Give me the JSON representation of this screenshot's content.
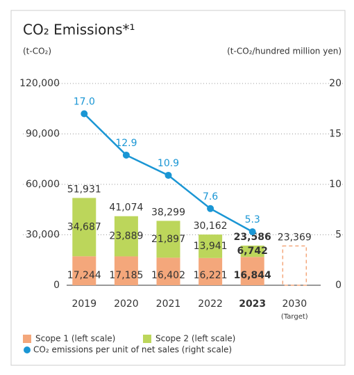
{
  "chart_data": {
    "type": "bar",
    "title": "CO₂ Emissions*¹",
    "y_label": "(t-CO₂)",
    "y2_label": "(t-CO₂/hundred million yen)",
    "categories": [
      "2019",
      "2020",
      "2021",
      "2022",
      "2023",
      "2030"
    ],
    "category_note": "(Target)",
    "highlight_category": "2023",
    "stacked": true,
    "series": [
      {
        "name": "Scope 1 (left scale)",
        "color": "#f4a77b",
        "values": [
          17244,
          17185,
          16402,
          16221,
          16844,
          null
        ],
        "value_labels": [
          "17,244",
          "17,185",
          "16,402",
          "16,221",
          "16,844",
          null
        ]
      },
      {
        "name": "Scope 2 (left scale)",
        "color": "#bcd65b",
        "values": [
          34687,
          23889,
          21897,
          13941,
          6742,
          null
        ],
        "value_labels": [
          "34,687",
          "23,889",
          "21,897",
          "13,941",
          "6,742",
          null
        ]
      },
      {
        "name": "CO₂ emissions per unit of net sales (right scale)",
        "color": "#1a96d4",
        "type": "line",
        "axis": "y2",
        "values": [
          17.0,
          12.9,
          10.9,
          7.6,
          5.3,
          null
        ],
        "value_labels": [
          "17.0",
          "12.9",
          "10.9",
          "7.6",
          "5.3",
          null
        ]
      }
    ],
    "totals": {
      "values": [
        51931,
        41074,
        38299,
        30162,
        23586,
        23369
      ],
      "value_labels": [
        "51,931",
        "41,074",
        "38,299",
        "30,162",
        "23,586",
        "23,369"
      ]
    },
    "target_color": "#f4a77b",
    "ylim": [
      0,
      120000
    ],
    "yticks": [
      0,
      {
        "value": 30000,
        "label": "30,000"
      },
      {
        "value": 60000,
        "label": "60,000"
      },
      {
        "value": 90000,
        "label": "90,000"
      },
      {
        "value": 120000,
        "label": "120,000"
      }
    ],
    "y2lim": [
      0,
      20
    ],
    "y2ticks": [
      0,
      5,
      10,
      15,
      20
    ],
    "grid": true
  }
}
